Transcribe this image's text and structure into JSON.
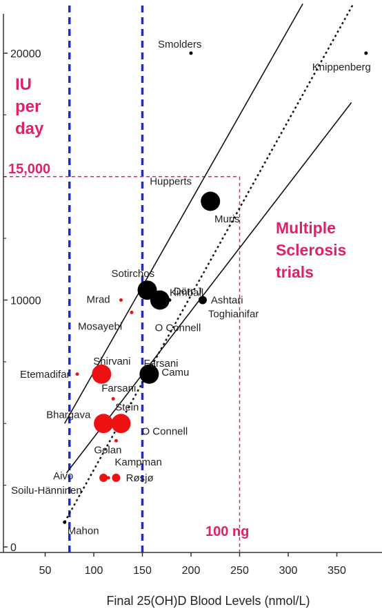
{
  "chart_data": {
    "type": "scatter",
    "xlabel": "Final 25(OH)D Blood Levels (nmol/L)",
    "ylabel": "",
    "xlim": [
      0,
      385
    ],
    "ylim": [
      0,
      22000
    ],
    "x_ticks": [
      "0",
      "50",
      "100",
      "150",
      "200",
      "250",
      "300",
      "350"
    ],
    "y_ticks": [
      "0",
      "10000",
      "20000"
    ],
    "grid": false,
    "series": [
      {
        "color": "#000000",
        "points": [
          {
            "label": "Smolders",
            "x": 200,
            "y": 20000,
            "size": "small"
          },
          {
            "label": "Knippenberg",
            "x": 380,
            "y": 20000,
            "size": "small"
          },
          {
            "label": "Hupperts",
            "x": 220,
            "y": 14000,
            "size": "large"
          },
          {
            "label": "Muris",
            "x": 222,
            "y": 13700,
            "size": "small"
          },
          {
            "label": "Sotirchos",
            "x": 155,
            "y": 10400,
            "size": "large"
          },
          {
            "label": "Dörr J",
            "x": 168,
            "y": 10000,
            "size": "large"
          },
          {
            "label": "Kimball",
            "x": 178,
            "y": 10000,
            "size": "small"
          },
          {
            "label": "Ashtari",
            "x": 212,
            "y": 10000,
            "size": "medium"
          },
          {
            "label": "Camu",
            "x": 157,
            "y": 7000,
            "size": "large"
          },
          {
            "label": "Mahon",
            "x": 70,
            "y": 1000,
            "size": "small"
          }
        ]
      },
      {
        "color": "#ee1111",
        "points": [
          {
            "label": "Mrad",
            "x": 128,
            "y": 10000,
            "size": "small"
          },
          {
            "label": "Mosayebi",
            "x": 139,
            "y": 9500,
            "size": "small"
          },
          {
            "label": "Etemadifar",
            "x": 83,
            "y": 7000,
            "size": "small"
          },
          {
            "label": "Shirvani",
            "x": 108,
            "y": 7000,
            "size": "large"
          },
          {
            "label": "Farsani",
            "x": 108,
            "y": 7000,
            "size": "small"
          },
          {
            "label": "Stein",
            "x": 120,
            "y": 6000,
            "size": "small"
          },
          {
            "label": "Bhargava",
            "x": 110,
            "y": 5000,
            "size": "large"
          },
          {
            "label": "O Connell",
            "x": 128,
            "y": 5000,
            "size": "large"
          },
          {
            "label": "Golan",
            "x": 123,
            "y": 4300,
            "size": "small"
          },
          {
            "label": "Kampman",
            "x": 123,
            "y": 2800,
            "size": "medium"
          },
          {
            "label": "Aivo",
            "x": 110,
            "y": 2800,
            "size": "medium"
          },
          {
            "label": "Soilu-Hänninen",
            "x": 115,
            "y": 2800,
            "size": "small"
          }
        ]
      }
    ],
    "extra_labels": [
      "Toghianifar",
      "Farsani",
      "O Connell",
      "Røsjø"
    ],
    "reference_lines": [
      {
        "type": "vertical",
        "x": 75,
        "style": "dashed",
        "color": "#1a2bd0"
      },
      {
        "type": "vertical",
        "x": 150,
        "style": "dashed",
        "color": "#1a2bd0"
      },
      {
        "type": "vertical",
        "x": 250,
        "style": "dashed",
        "color": "#e0206a"
      },
      {
        "type": "horizontal",
        "y": 15000,
        "style": "dashed",
        "color": "#e0206a"
      }
    ],
    "trend_lines": [
      {
        "style": "dotted",
        "from": [
          70,
          1000
        ],
        "to": [
          367,
          22000
        ]
      },
      {
        "style": "solid",
        "from": [
          70,
          5000
        ],
        "to": [
          315,
          22000
        ]
      },
      {
        "style": "solid",
        "from": [
          72,
          3000
        ],
        "to": [
          365,
          18000
        ]
      }
    ],
    "annotations": {
      "iu_per_day": [
        "IU",
        "per",
        "day"
      ],
      "y_marker": "15,000",
      "trials": [
        "Multiple",
        "Sclerosis",
        "trials"
      ],
      "x_marker": "100 ng"
    }
  }
}
